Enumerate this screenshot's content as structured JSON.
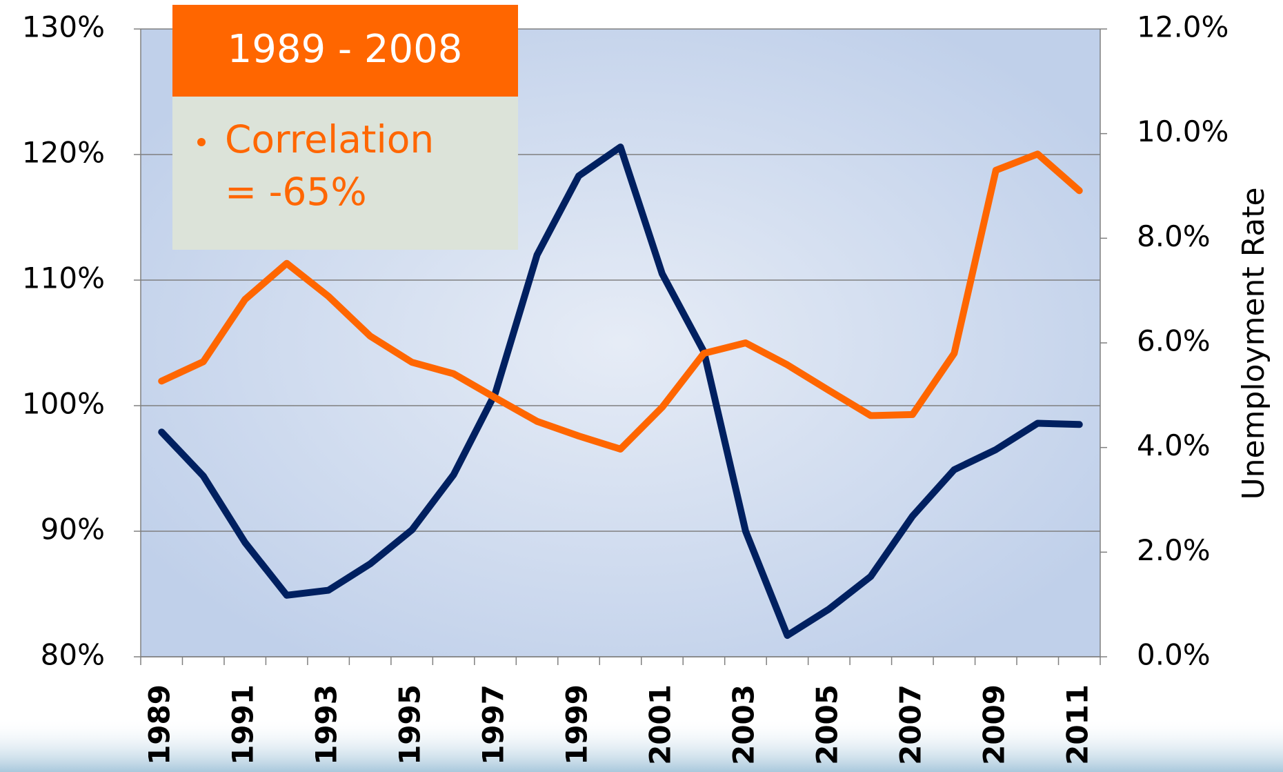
{
  "chart_data": {
    "type": "line",
    "categories": [
      "1989",
      null,
      "1991",
      null,
      "1993",
      null,
      "1995",
      null,
      "1997",
      null,
      "1999",
      null,
      "2001",
      null,
      "2003",
      null,
      "2005",
      null,
      "2007",
      null,
      "2009",
      null,
      "2011"
    ],
    "series": [
      {
        "color": "#002060",
        "values": [
          97.9,
          94.4,
          89.1,
          84.9,
          85.3,
          87.4,
          90.1,
          94.5,
          101.0,
          112.0,
          118.3,
          120.6,
          110.5,
          104.3,
          90.0,
          81.7,
          83.8,
          86.4,
          91.2,
          94.9,
          96.5,
          98.6,
          98.5
        ]
      },
      {
        "color": "#ff6600",
        "axis": "y2",
        "values": [
          5.27,
          5.64,
          6.83,
          7.52,
          6.89,
          6.13,
          5.63,
          5.41,
          4.95,
          4.5,
          4.22,
          3.97,
          4.77,
          5.8,
          6.0,
          5.58,
          5.09,
          4.61,
          4.63,
          5.8,
          9.3,
          9.61,
          8.91
        ]
      }
    ],
    "ylim": [
      80,
      130
    ],
    "yticks": [
      {
        "value": 80,
        "label": "80%"
      },
      {
        "value": 90,
        "label": "90%"
      },
      {
        "value": 100,
        "label": "100%"
      },
      {
        "value": 110,
        "label": "110%"
      },
      {
        "value": 120,
        "label": "120%"
      },
      {
        "value": 130,
        "label": "130%"
      }
    ],
    "y2lim": [
      0,
      12
    ],
    "y2ticks": [
      {
        "value": 0,
        "label": "0.0%"
      },
      {
        "value": 2,
        "label": "2.0%"
      },
      {
        "value": 4,
        "label": "4.0%"
      },
      {
        "value": 6,
        "label": "6.0%"
      },
      {
        "value": 8,
        "label": "8.0%"
      },
      {
        "value": 10,
        "label": "10.0%"
      },
      {
        "value": 12,
        "label": "12.0%"
      }
    ],
    "y2label": "Unemployment Rate",
    "grid": true,
    "annotation": {
      "header": "1989 - 2008",
      "lines": [
        "Correlation",
        "= -65%"
      ]
    }
  }
}
